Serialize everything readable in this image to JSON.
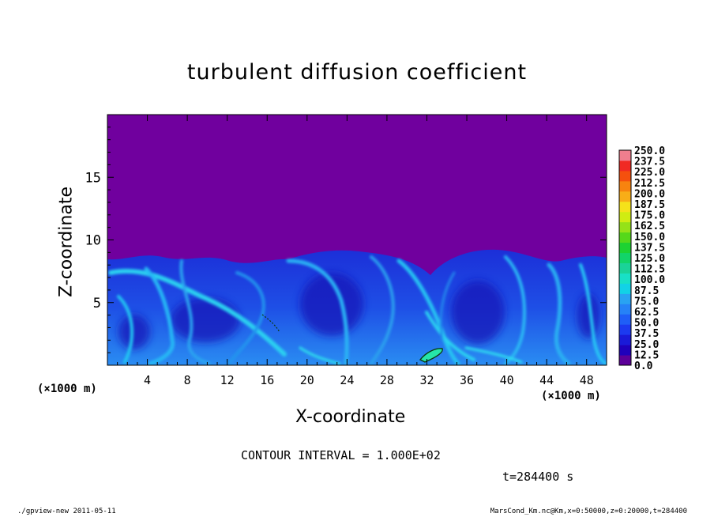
{
  "chart_data": {
    "type": "heatmap",
    "title": "turbulent diffusion coefficient",
    "xlabel": "X-coordinate",
    "ylabel": "Z-coordinate",
    "x_unit": "(×1000 m)",
    "y_unit": "(×1000 m)",
    "x_ticks": [
      4,
      8,
      12,
      16,
      20,
      24,
      28,
      32,
      36,
      40,
      44,
      48
    ],
    "y_ticks": [
      5,
      10,
      15
    ],
    "xlim": [
      0,
      50
    ],
    "ylim": [
      0,
      20
    ],
    "colorbar_levels": [
      "0.0",
      "12.5",
      "25.0",
      "37.5",
      "50.0",
      "62.5",
      "75.0",
      "87.5",
      "100.0",
      "112.5",
      "125.0",
      "137.5",
      "150.0",
      "162.5",
      "175.0",
      "187.5",
      "200.0",
      "212.5",
      "225.0",
      "237.5",
      "250.0"
    ],
    "colorbar_colors": [
      "#5c0099",
      "#1f00bb",
      "#1a1ad8",
      "#1c3af0",
      "#1f5ef7",
      "#2682f7",
      "#29a3f2",
      "#12d2e6",
      "#18e0c6",
      "#1ad398",
      "#12d468",
      "#1dd232",
      "#55d81a",
      "#95e218",
      "#d0ec12",
      "#f5e21a",
      "#f8ad17",
      "#f7830f",
      "#f5500e",
      "#f02a24",
      "#f07e8e"
    ],
    "background_value_color": "#70009e",
    "boundary_layer_top_km": 8.5
  },
  "contour_interval": "CONTOUR INTERVAL = 1.000E+02",
  "time_label": "t=284400 s",
  "footer_left": "./gpview-new   2011-05-11",
  "footer_right": "MarsCond_Km.nc@Km,x=0:50000,z=0:20000,t=284400"
}
